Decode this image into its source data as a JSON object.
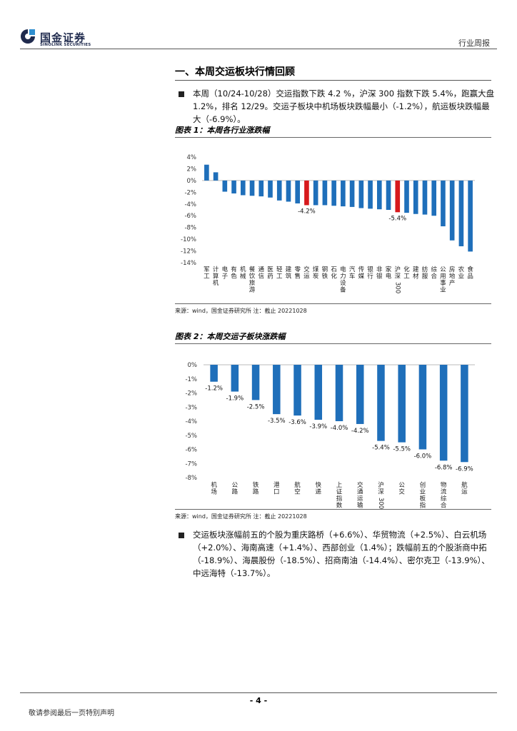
{
  "header": {
    "logo_cn": "国金证券",
    "logo_en": "SINOLINK SECURITIES",
    "report_type": "行业周报"
  },
  "section": {
    "title": "一、本周交运板块行情回顾",
    "para1": "本周（10/24-10/28）交运指数下跌 4.2 %，沪深 300 指数下跌 5.4%，跑赢大盘 1.2%，排名 12/29。交运子板块中机场板块跌幅最小（-1.2%），航运板块跌幅最大（-6.9%）。",
    "para2": "交运板块涨幅前五的个股为重庆路桥（+6.6%）、华贸物流（+2.5%）、白云机场（+2.0%）、海南高速（+1.4%）、西部创业（1.4%）；跌幅前五的个股浙商中拓（-18.9%）、海晨股份（-18.5%）、招商南油（-14.4%）、密尔克卫（-13.9%）、中远海特（-13.7%）。"
  },
  "figures": {
    "fig1_title": "图表 1：本周各行业涨跌幅",
    "fig1_source": "来源：wind，国金证券研究所 注：截止 20221028",
    "fig2_title": "图表 2：本周交运子板块涨跌幅",
    "fig2_source": "来源：wind，国金证券研究所 注：截止 20221028"
  },
  "chart_data": [
    {
      "type": "bar",
      "title": "本周各行业涨跌幅",
      "categories": [
        "军工",
        "计算机",
        "电子",
        "有色",
        "机械",
        "餐饮旅游",
        "通信",
        "医药",
        "轻工",
        "建筑",
        "零售",
        "交运",
        "煤炭",
        "钢铁",
        "石化",
        "电力设备",
        "汽车",
        "传媒",
        "银行",
        "非银",
        "家电",
        "沪深300",
        "化工",
        "建材",
        "纺服",
        "综合",
        "公用事业",
        "房地产",
        "农业",
        "食品"
      ],
      "values": [
        2.7,
        1.4,
        -1.9,
        -2.2,
        -2.5,
        -2.6,
        -2.7,
        -2.9,
        -3.4,
        -3.6,
        -3.9,
        -4.2,
        -4.2,
        -4.2,
        -4.3,
        -4.4,
        -4.5,
        -4.7,
        -4.8,
        -4.9,
        -5.0,
        -5.4,
        -5.5,
        -5.7,
        -5.8,
        -6.0,
        -7.8,
        -10.2,
        -11.2,
        -12.1
      ],
      "highlight": [
        "交运",
        "沪深300"
      ],
      "data_labels": {
        "交运": "-4.2%",
        "沪深300": "-5.4%"
      },
      "yticks": [
        "4%",
        "2%",
        "0%",
        "-2%",
        "-4%",
        "-6%",
        "-8%",
        "-10%",
        "-12%",
        "-14%"
      ],
      "ylim": [
        -14,
        4
      ],
      "colors": {
        "bar": "#1f6fba",
        "highlight": "#d7191c"
      }
    },
    {
      "type": "bar",
      "title": "本周交运子板块涨跌幅",
      "categories": [
        "机场",
        "公路",
        "铁路",
        "港口",
        "航空",
        "快递",
        "上证指数",
        "交通运输",
        "沪深300",
        "公交",
        "创业板指",
        "物流综合",
        "航运"
      ],
      "values": [
        -1.2,
        -1.9,
        -2.5,
        -3.5,
        -3.6,
        -3.9,
        -4.0,
        -4.2,
        -5.4,
        -5.5,
        -6.0,
        -6.8,
        -6.9
      ],
      "labels": [
        "-1.2%",
        "-1.9%",
        "-2.5%",
        "-3.5%",
        "-3.6%",
        "-3.9%",
        "-4.0%",
        "-4.2%",
        "-5.4%",
        "-5.5%",
        "-6.0%",
        "-6.8%",
        "-6.9%"
      ],
      "yticks": [
        "0%",
        "-1%",
        "-2%",
        "-3%",
        "-4%",
        "-5%",
        "-6%",
        "-7%",
        "-8%"
      ],
      "ylim": [
        -8,
        0
      ],
      "colors": {
        "bar": "#1f6fba"
      }
    }
  ],
  "footer": {
    "page_number": "- 4 -",
    "disclaimer": "敬请参阅最后一页特别声明"
  }
}
